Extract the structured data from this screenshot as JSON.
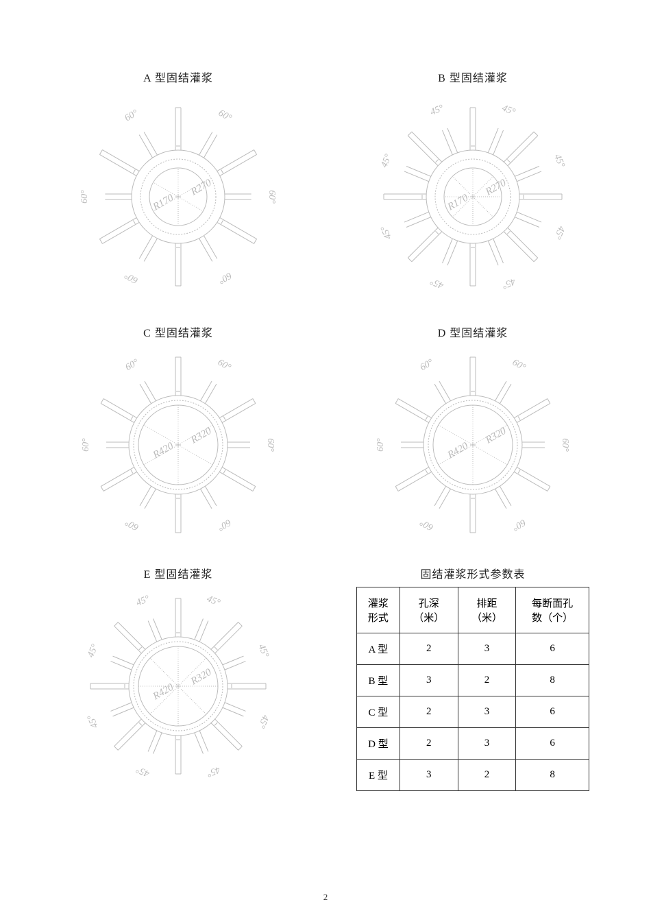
{
  "page_number": "2",
  "diagrams": {
    "A": {
      "title": "A 型固结灌浆",
      "spokes": 6,
      "angle_label": "60°",
      "r_inner_label": "R170",
      "r_outer_label": "R270",
      "r_inner": 42,
      "r_outer": 68,
      "extent": 130,
      "size": 310
    },
    "B": {
      "title": "B 型固结灌浆",
      "spokes": 8,
      "angle_label": "45°",
      "r_inner_label": "R170",
      "r_outer_label": "R270",
      "r_inner": 42,
      "r_outer": 68,
      "extent": 130,
      "size": 310
    },
    "C": {
      "title": "C 型固结灌浆",
      "spokes": 6,
      "angle_label": "60°",
      "r_inner_label": "R420",
      "r_outer_label": "R320",
      "r_inner": 58,
      "r_outer": 72,
      "extent": 128,
      "size": 290
    },
    "D": {
      "title": "D 型固结灌浆",
      "spokes": 6,
      "angle_label": "60°",
      "r_inner_label": "R420",
      "r_outer_label": "R320",
      "r_inner": 58,
      "r_outer": 72,
      "extent": 128,
      "size": 290
    },
    "E": {
      "title": "E 型固结灌浆",
      "spokes": 8,
      "angle_label": "45°",
      "r_inner_label": "R420",
      "r_outer_label": "R320",
      "r_inner": 58,
      "r_outer": 72,
      "extent": 128,
      "size": 290
    }
  },
  "table": {
    "title": "固结灌浆形式参数表",
    "header": {
      "c1a": "灌浆",
      "c1b": "形式",
      "c2a": "孔深",
      "c2b": "（米）",
      "c3a": "排距",
      "c3b": "（米）",
      "c4a": "每断面孔",
      "c4b": "数（个）"
    },
    "rows": [
      {
        "type": "A 型",
        "depth": "2",
        "spacing": "3",
        "holes": "6"
      },
      {
        "type": "B 型",
        "depth": "3",
        "spacing": "2",
        "holes": "8"
      },
      {
        "type": "C 型",
        "depth": "2",
        "spacing": "3",
        "holes": "6"
      },
      {
        "type": "D 型",
        "depth": "2",
        "spacing": "3",
        "holes": "6"
      },
      {
        "type": "E 型",
        "depth": "3",
        "spacing": "2",
        "holes": "8"
      }
    ]
  },
  "styling": {
    "line_color": "#bbbbbb",
    "text_color": "#222222",
    "table_border_color": "#333333",
    "background": "#ffffff",
    "title_fontsize": 16,
    "diagram_label_fontsize": 14
  }
}
